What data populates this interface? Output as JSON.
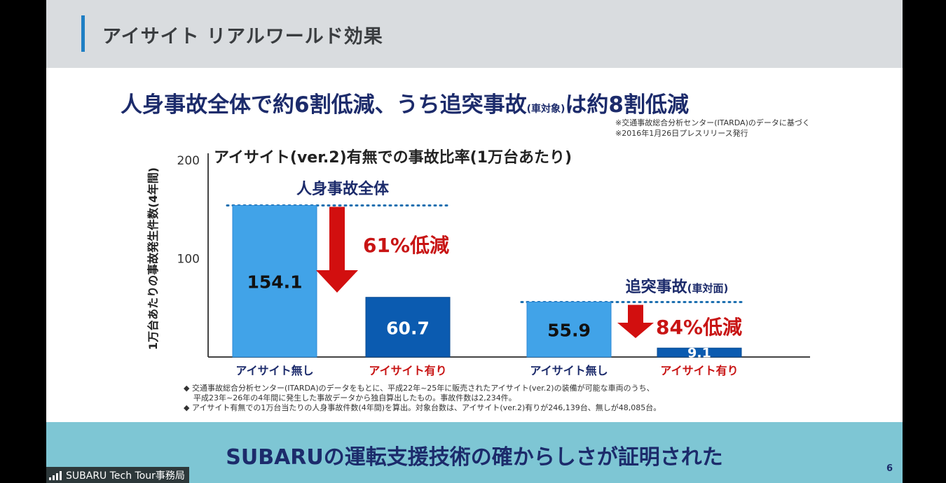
{
  "header": {
    "title": "アイサイト リアルワールド効果"
  },
  "headline": {
    "part1": "人身事故全体で約6割低減、うち追突事故",
    "part_small": "(車対象)",
    "part2": "は約8割低減"
  },
  "notes_top": [
    "※交通事故総合分析センター(ITARDA)のデータに基づく",
    "※2016年1月26日プレスリリース発行"
  ],
  "chart_data": {
    "type": "bar",
    "title": "アイサイト(ver.2)有無での事故比率(1万台あたり)",
    "ylabel": "1万台あたりの事故発生件数(4年間)",
    "ylim": [
      0,
      200
    ],
    "yticks": [
      100,
      200
    ],
    "groups": [
      {
        "name": "人身事故全体",
        "name_suffix": "",
        "reduction_label": "61%低減",
        "bars": [
          {
            "label": "アイサイト無し",
            "value": 154.1,
            "value_label": "154.1"
          },
          {
            "label": "アイサイト有り",
            "value": 60.7,
            "value_label": "60.7"
          }
        ]
      },
      {
        "name": "追突事故",
        "name_suffix": "(車対面)",
        "reduction_label": "84%低減",
        "bars": [
          {
            "label": "アイサイト無し",
            "value": 55.9,
            "value_label": "55.9"
          },
          {
            "label": "アイサイト有り",
            "value": 9.1,
            "value_label": "9.1"
          }
        ]
      }
    ],
    "colors": {
      "without": "#41a3e8",
      "with": "#0b5bb0",
      "arrow": "#d20f0f",
      "reduction_text": "#c81414",
      "label_without": "#1c2b6b",
      "label_with": "#c81414",
      "dots": "#1c6fb0"
    }
  },
  "footnotes": [
    "◆ 交通事故総合分析センター(ITARDA)のデータをもとに、平成22年~25年に販売されたアイサイト(ver.2)の装備が可能な車両のうち、",
    "平成23年~26年の4年間に発生した事故データから独自算出したもの。事故件数は2,234件。",
    "◆ アイサイト有無での1万台当たりの人身事故件数(4年間)を算出。対象台数は、アイサイト(ver.2)有りが246,139台、無しが48,085台。"
  ],
  "banner": {
    "text": "SUBARUの運転支援技術の確からしさが証明された"
  },
  "page_number": "6",
  "participant": {
    "name": "SUBARU Tech Tour事務局",
    "icon": "signal-bars-icon"
  }
}
